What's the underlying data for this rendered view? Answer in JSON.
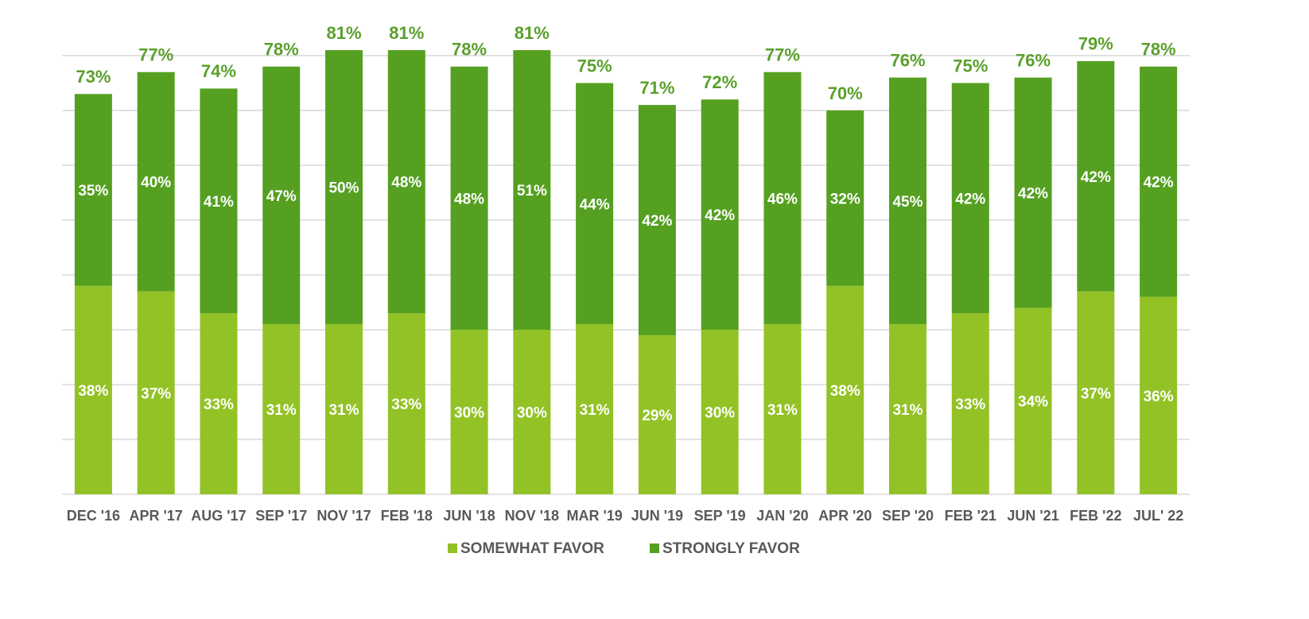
{
  "chart_data": {
    "type": "stacked-bar",
    "categories": [
      "DEC '16",
      "APR '17",
      "AUG '17",
      "SEP '17",
      "NOV '17",
      "FEB '18",
      "JUN '18",
      "NOV '18",
      "MAR '19",
      "JUN '19",
      "SEP '19",
      "JAN '20",
      "APR '20",
      "SEP '20",
      "FEB '21",
      "JUN '21",
      "FEB '22",
      "JUL' 22"
    ],
    "series": [
      {
        "name": "SOMEWHAT FAVOR",
        "color": "#93c226",
        "values": [
          38,
          37,
          33,
          31,
          31,
          33,
          30,
          30,
          31,
          29,
          30,
          31,
          38,
          31,
          33,
          34,
          37,
          36
        ],
        "value_labels": [
          "38%",
          "37%",
          "33%",
          "31%",
          "31%",
          "33%",
          "30%",
          "30%",
          "31%",
          "29%",
          "30%",
          "31%",
          "38%",
          "31%",
          "33%",
          "34%",
          "37%",
          "36%"
        ]
      },
      {
        "name": "STRONGLY FAVOR",
        "color": "#55a021",
        "values": [
          35,
          40,
          41,
          47,
          50,
          48,
          48,
          51,
          44,
          42,
          42,
          46,
          32,
          45,
          42,
          42,
          42,
          42
        ],
        "value_labels": [
          "35%",
          "40%",
          "41%",
          "47%",
          "50%",
          "48%",
          "48%",
          "51%",
          "44%",
          "42%",
          "42%",
          "46%",
          "32%",
          "45%",
          "42%",
          "42%",
          "42%",
          "42%"
        ]
      }
    ],
    "totals": {
      "color": "#5aa02c",
      "values": [
        73,
        77,
        74,
        78,
        81,
        81,
        78,
        81,
        75,
        71,
        72,
        77,
        70,
        76,
        75,
        76,
        79,
        78
      ],
      "value_labels": [
        "73%",
        "77%",
        "74%",
        "78%",
        "81%",
        "81%",
        "78%",
        "81%",
        "75%",
        "71%",
        "72%",
        "77%",
        "70%",
        "76%",
        "75%",
        "76%",
        "79%",
        "78%"
      ]
    },
    "ylim": [
      0,
      90
    ],
    "yticks": [
      0,
      10,
      20,
      30,
      40,
      50,
      60,
      70,
      80
    ],
    "grid": true,
    "legend": "bottom"
  }
}
